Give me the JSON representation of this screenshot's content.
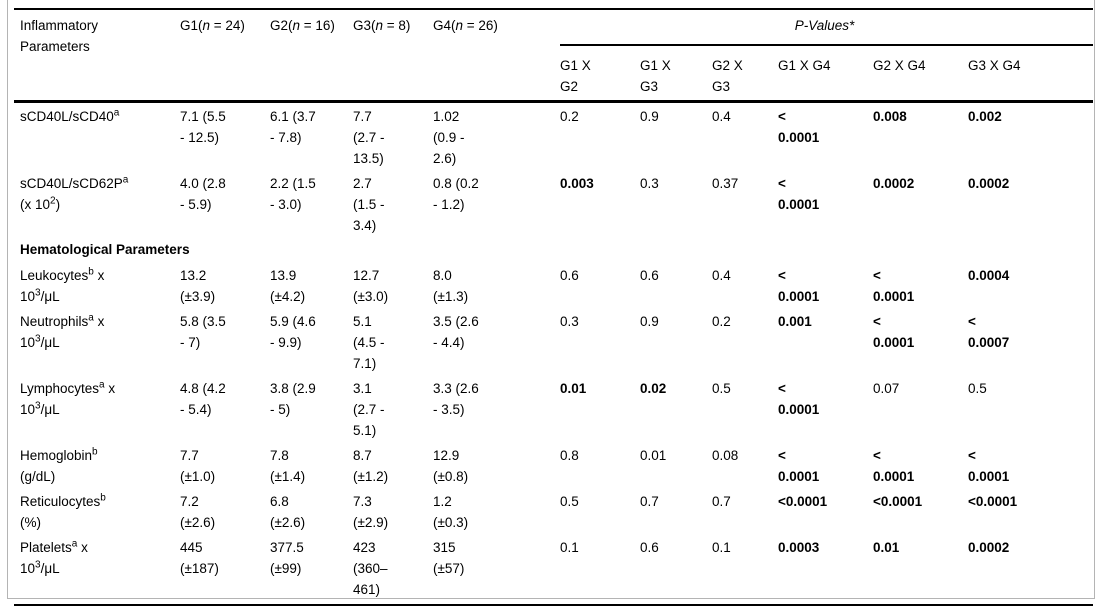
{
  "table": {
    "header": {
      "param_label": "Inflammatory\nParameters",
      "group_headers": [
        {
          "parts": [
            {
              "t": "G1("
            },
            {
              "t": "n",
              "i": true
            },
            {
              "t": " = 24)"
            }
          ]
        },
        {
          "parts": [
            {
              "t": "G2("
            },
            {
              "t": "n",
              "i": true
            },
            {
              "t": " = 16)"
            }
          ]
        },
        {
          "parts": [
            {
              "t": "G3("
            },
            {
              "t": "n",
              "i": true
            },
            {
              "t": " = 8)"
            }
          ]
        },
        {
          "parts": [
            {
              "t": "G4("
            },
            {
              "t": "n",
              "i": true
            },
            {
              "t": " = 26)"
            }
          ]
        }
      ],
      "pvalues_title": "P-Values*",
      "pvalue_headers": [
        "G1 X\nG2",
        "G1 X\nG3",
        "G2 X\nG3",
        "G1 X G4",
        "G2 X G4",
        "G3 X G4"
      ]
    },
    "sections": [
      {
        "rows": [
          {
            "label_parts": [
              {
                "t": "sCD40L/sCD40"
              },
              {
                "t": "a",
                "sup": true
              }
            ],
            "values": [
              "7.1 (5.5\n- 12.5)",
              "6.1 (3.7\n- 7.8)",
              "7.7\n(2.7 -\n13.5)",
              "1.02\n(0.9 -\n2.6)"
            ],
            "pvalues": [
              "0.2",
              "0.9",
              "0.4",
              "<\n0.0001",
              "0.008",
              "0.002"
            ]
          },
          {
            "label_parts": [
              {
                "t": "sCD40L/sCD62P"
              },
              {
                "t": "a",
                "sup": true
              },
              {
                "t": "\n(x 10"
              },
              {
                "t": "2",
                "sup": true
              },
              {
                "t": ")"
              }
            ],
            "values": [
              "4.0 (2.8\n- 5.9)",
              "2.2 (1.5\n- 3.0)",
              "2.7\n(1.5 -\n3.4)",
              "0.8 (0.2\n- 1.2)"
            ],
            "pvalues": [
              "0.003",
              "0.3",
              "0.37",
              "<\n0.0001",
              "0.0002",
              "0.0002"
            ]
          }
        ]
      },
      {
        "title": "Hematological Parameters",
        "rows": [
          {
            "label_parts": [
              {
                "t": "Leukocytes"
              },
              {
                "t": "b",
                "sup": true
              },
              {
                "t": " x\n10"
              },
              {
                "t": "3",
                "sup": true
              },
              {
                "t": "/μL"
              }
            ],
            "values": [
              "13.2\n(±3.9)",
              "13.9\n(±4.2)",
              "12.7\n(±3.0)",
              "8.0\n(±1.3)"
            ],
            "pvalues": [
              "0.6",
              "0.6",
              "0.4",
              "<\n0.0001",
              "<\n0.0001",
              "0.0004"
            ]
          },
          {
            "label_parts": [
              {
                "t": "Neutrophils"
              },
              {
                "t": "a",
                "sup": true
              },
              {
                "t": " x\n10"
              },
              {
                "t": "3",
                "sup": true
              },
              {
                "t": "/μL"
              }
            ],
            "values": [
              "5.8 (3.5\n- 7)",
              "5.9 (4.6\n- 9.9)",
              "5.1\n(4.5 -\n7.1)",
              "3.5 (2.6\n- 4.4)"
            ],
            "pvalues": [
              "0.3",
              "0.9",
              "0.2",
              "0.001",
              "<\n0.0001",
              "<\n0.0007"
            ]
          },
          {
            "label_parts": [
              {
                "t": "Lymphocytes"
              },
              {
                "t": "a",
                "sup": true
              },
              {
                "t": " x\n10"
              },
              {
                "t": "3",
                "sup": true
              },
              {
                "t": "/μL"
              }
            ],
            "values": [
              "4.8 (4.2\n- 5.4)",
              "3.8 (2.9\n- 5)",
              "3.1\n(2.7 -\n5.1)",
              "3.3 (2.6\n- 3.5)"
            ],
            "pvalues": [
              "0.01",
              "0.02",
              "0.5",
              "<\n0.0001",
              "0.07",
              "0.5"
            ]
          },
          {
            "label_parts": [
              {
                "t": "Hemoglobin"
              },
              {
                "t": "b",
                "sup": true
              },
              {
                "t": "\n(g/dL)"
              }
            ],
            "values": [
              "7.7\n(±1.0)",
              "7.8\n(±1.4)",
              "8.7\n(±1.2)",
              "12.9\n(±0.8)"
            ],
            "pvalues": [
              "0.8",
              "0.01",
              "0.08",
              "<\n0.0001",
              "<\n0.0001",
              "<\n0.0001"
            ]
          },
          {
            "label_parts": [
              {
                "t": "Reticulocytes"
              },
              {
                "t": "b",
                "sup": true
              },
              {
                "t": "\n(%)"
              }
            ],
            "values": [
              "7.2\n(±2.6)",
              "6.8\n(±2.6)",
              "7.3\n(±2.9)",
              "1.2\n(±0.3)"
            ],
            "pvalues": [
              "0.5",
              "0.7",
              "0.7",
              "<0.0001",
              "<0.0001",
              "<0.0001"
            ]
          },
          {
            "label_parts": [
              {
                "t": "Platelets"
              },
              {
                "t": "a",
                "sup": true
              },
              {
                "t": " x\n10"
              },
              {
                "t": "3",
                "sup": true
              },
              {
                "t": "/μL"
              }
            ],
            "values": [
              "445\n(±187)",
              "377.5\n(±99)",
              "423\n(360–\n461)",
              "315\n(±57)"
            ],
            "pvalues": [
              "0.1",
              "0.6",
              "0.1",
              "0.0003",
              "0.01",
              "0.0002"
            ]
          }
        ]
      }
    ]
  }
}
